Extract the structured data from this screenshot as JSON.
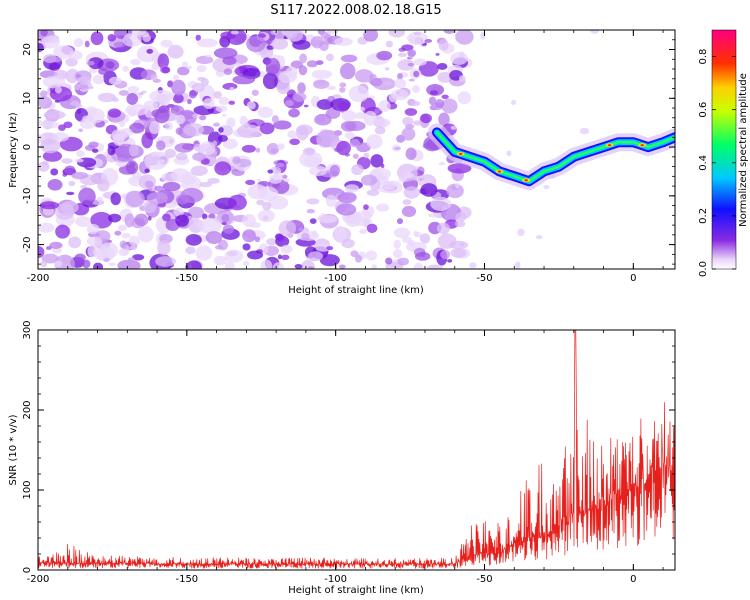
{
  "chart_data": [
    {
      "type": "heatmap",
      "title": "S117.2022.008.02.18.G15",
      "xlabel": "Height of straight line (km)",
      "ylabel": "Frequency (Hz)",
      "xlim": [
        -200,
        14
      ],
      "ylim": [
        -25,
        24
      ],
      "xticks": [
        -200,
        -150,
        -100,
        -50,
        0
      ],
      "xtick_labels": [
        "-200",
        "-150",
        "-100",
        "-50",
        "0"
      ],
      "yticks": [
        -20,
        -10,
        0,
        10,
        20
      ],
      "ytick_labels": [
        "-20",
        "-10",
        "0",
        "10",
        "20"
      ],
      "noise_region_x": [
        -200,
        -58
      ],
      "ridge": {
        "x": [
          -66,
          -60,
          -55,
          -50,
          -45,
          -40,
          -35,
          -30,
          -25,
          -20,
          -15,
          -10,
          -5,
          0,
          5,
          10,
          14
        ],
        "y": [
          3,
          -1,
          -2,
          -3,
          -5,
          -6,
          -7,
          -5,
          -4,
          -2,
          -1,
          0,
          1,
          1,
          0,
          1,
          2
        ]
      },
      "colorbar": {
        "label": "Normalized spectral amplitude",
        "range": [
          0,
          0.9
        ],
        "ticks": [
          0.0,
          0.2,
          0.4,
          0.6,
          0.8
        ],
        "tick_labels": [
          "0.0",
          "0.2",
          "0.4",
          "0.6",
          "0.8"
        ],
        "colormap": "rainbow (white→violet→blue→cyan→green→yellow→orange→red→magenta)"
      }
    },
    {
      "type": "line",
      "title": "",
      "xlabel": "Height of straight line (km)",
      "ylabel": "SNR (10 * v/v)",
      "xlim": [
        -200,
        14
      ],
      "ylim": [
        0,
        300
      ],
      "xticks": [
        -200,
        -150,
        -100,
        -50,
        0
      ],
      "xtick_labels": [
        "-200",
        "-150",
        "-100",
        "-50",
        "0"
      ],
      "yticks": [
        0,
        100,
        200,
        300
      ],
      "ytick_labels": [
        "0",
        "100",
        "200",
        "300"
      ],
      "series": [
        {
          "name": "SNR",
          "color": "#e8201c",
          "envelope_x": [
            -200,
            -195,
            -190,
            -180,
            -150,
            -100,
            -60,
            -55,
            -50,
            -45,
            -40,
            -35,
            -30,
            -25,
            -22,
            -20,
            -18,
            -15,
            -10,
            -5,
            0,
            5,
            10,
            14
          ],
          "envelope_y": [
            18,
            20,
            35,
            18,
            16,
            15,
            15,
            55,
            65,
            60,
            95,
            120,
            150,
            195,
            200,
            300,
            230,
            190,
            170,
            180,
            185,
            200,
            230,
            210
          ],
          "baseline_y": [
            8,
            8,
            8,
            8,
            7,
            7,
            7,
            15,
            20,
            20,
            30,
            40,
            40,
            55,
            60,
            70,
            70,
            70,
            80,
            90,
            100,
            110,
            130,
            120
          ]
        }
      ]
    }
  ]
}
